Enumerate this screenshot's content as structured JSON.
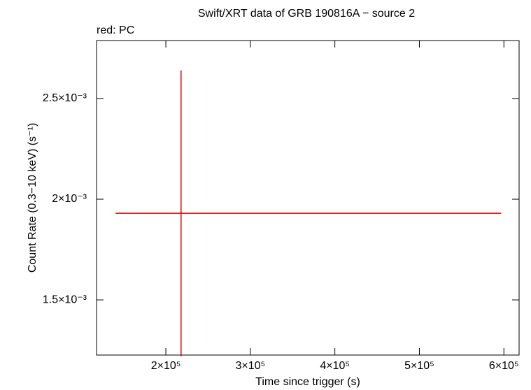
{
  "chart_data": {
    "type": "errorbar",
    "title": "Swift/XRT data of GRB 190816A − source 2",
    "subtitle": "red: PC",
    "xlabel": "Time since trigger (s)",
    "ylabel": "Count Rate (0.3−10 keV) (s⁻¹)",
    "xlim": [
      118000,
      618000
    ],
    "ylim": [
      0.001226,
      0.002788
    ],
    "xticks": [
      {
        "value": 200000,
        "label": "2×10⁵"
      },
      {
        "value": 300000,
        "label": "3×10⁵"
      },
      {
        "value": 400000,
        "label": "4×10⁵"
      },
      {
        "value": 500000,
        "label": "5×10⁵"
      },
      {
        "value": 600000,
        "label": "6×10⁵"
      }
    ],
    "yticks": [
      {
        "value": 0.0015,
        "label": "1.5×10⁻³"
      },
      {
        "value": 0.002,
        "label": "2×10⁻³"
      },
      {
        "value": 0.0025,
        "label": "2.5×10⁻³"
      }
    ],
    "series": [
      {
        "name": "PC",
        "color": "#e00000",
        "x": [
          218000
        ],
        "xerr_minus": [
          77500
        ],
        "xerr_plus": [
          378700
        ],
        "values": [
          0.00193
        ],
        "yerr": [
          0.00071
        ]
      }
    ]
  }
}
